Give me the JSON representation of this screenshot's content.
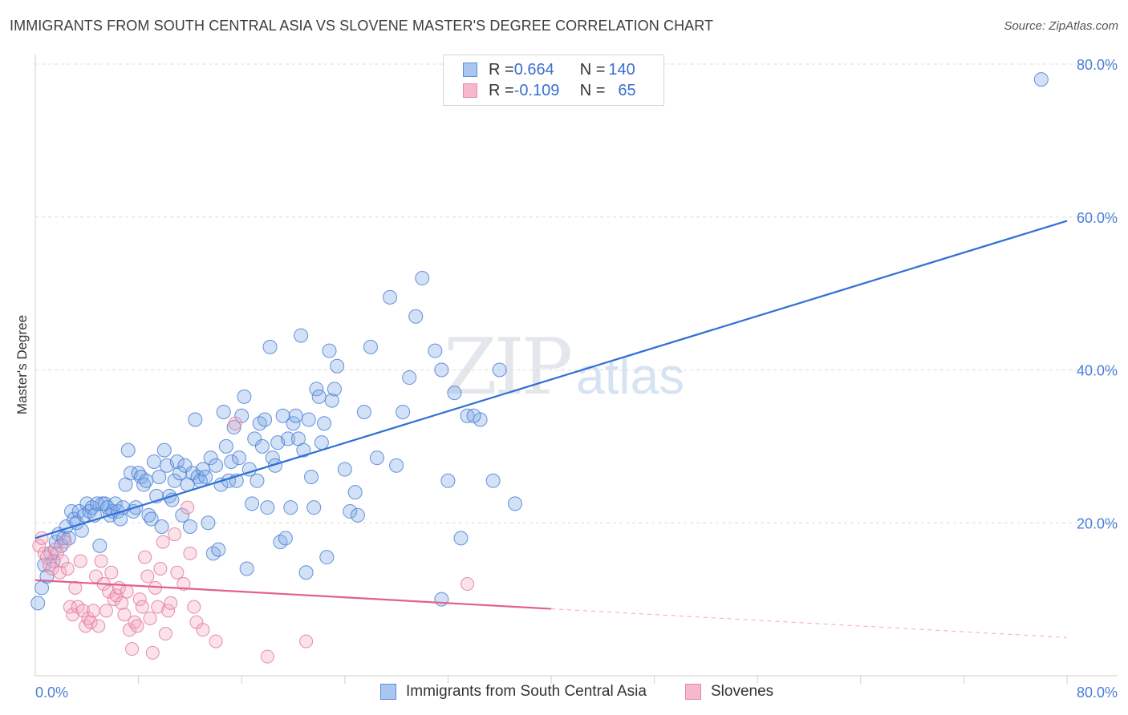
{
  "header": {
    "title": "IMMIGRANTS FROM SOUTH CENTRAL ASIA VS SLOVENE MASTER'S DEGREE CORRELATION CHART",
    "source": "Source: ZipAtlas.com"
  },
  "watermark": {
    "zip": "ZIP",
    "atlas": "atlas"
  },
  "legend_stats": [
    {
      "r_label": "R = ",
      "r_value": "0.664",
      "n_label": "N = ",
      "n_value": "140",
      "color": "#a9c6f0",
      "edge": "#5b8ddb"
    },
    {
      "r_label": "R = ",
      "r_value": "-0.109",
      "n_label": "N = ",
      "n_value": "65",
      "color": "#f6b9cb",
      "edge": "#e88aa8"
    }
  ],
  "bottom_legend": [
    {
      "label": "Immigrants from South Central Asia",
      "color": "#a9c6f0",
      "edge": "#5b8ddb"
    },
    {
      "label": "Slovenes",
      "color": "#f6b9cb",
      "edge": "#e88aa8"
    }
  ],
  "chart_data": {
    "type": "scatter",
    "title": "IMMIGRANTS FROM SOUTH CENTRAL ASIA VS SLOVENE MASTER'S DEGREE CORRELATION CHART",
    "xlabel": "",
    "ylabel": "Master's Degree",
    "xlim": [
      0,
      0.8
    ],
    "ylim": [
      0,
      0.8
    ],
    "x_tick_labels": [
      "0.0%",
      "80.0%"
    ],
    "y_tick_labels": [
      {
        "value": 0.2,
        "label": "20.0%"
      },
      {
        "value": 0.4,
        "label": "40.0%"
      },
      {
        "value": 0.6,
        "label": "60.0%"
      },
      {
        "value": 0.8,
        "label": "80.0%"
      }
    ],
    "grid": true,
    "series": [
      {
        "name": "Immigrants from South Central Asia",
        "color": "#7fa8e6",
        "edge": "#4b80d6",
        "trend": {
          "x0": 0.0,
          "y0": 0.18,
          "x1": 0.8,
          "y1": 0.595,
          "solid_to": 0.8
        },
        "points": [
          [
            0.002,
            0.095
          ],
          [
            0.005,
            0.115
          ],
          [
            0.007,
            0.145
          ],
          [
            0.009,
            0.13
          ],
          [
            0.012,
            0.16
          ],
          [
            0.014,
            0.15
          ],
          [
            0.016,
            0.175
          ],
          [
            0.018,
            0.185
          ],
          [
            0.02,
            0.17
          ],
          [
            0.022,
            0.18
          ],
          [
            0.024,
            0.195
          ],
          [
            0.026,
            0.18
          ],
          [
            0.028,
            0.215
          ],
          [
            0.03,
            0.205
          ],
          [
            0.032,
            0.2
          ],
          [
            0.034,
            0.215
          ],
          [
            0.036,
            0.19
          ],
          [
            0.038,
            0.21
          ],
          [
            0.04,
            0.225
          ],
          [
            0.042,
            0.215
          ],
          [
            0.044,
            0.22
          ],
          [
            0.046,
            0.21
          ],
          [
            0.048,
            0.225
          ],
          [
            0.05,
            0.17
          ],
          [
            0.052,
            0.225
          ],
          [
            0.054,
            0.225
          ],
          [
            0.056,
            0.22
          ],
          [
            0.058,
            0.21
          ],
          [
            0.06,
            0.215
          ],
          [
            0.062,
            0.225
          ],
          [
            0.064,
            0.215
          ],
          [
            0.066,
            0.205
          ],
          [
            0.068,
            0.22
          ],
          [
            0.07,
            0.25
          ],
          [
            0.072,
            0.295
          ],
          [
            0.074,
            0.265
          ],
          [
            0.076,
            0.215
          ],
          [
            0.078,
            0.22
          ],
          [
            0.08,
            0.265
          ],
          [
            0.082,
            0.26
          ],
          [
            0.084,
            0.25
          ],
          [
            0.086,
            0.255
          ],
          [
            0.088,
            0.21
          ],
          [
            0.09,
            0.205
          ],
          [
            0.092,
            0.28
          ],
          [
            0.094,
            0.235
          ],
          [
            0.096,
            0.26
          ],
          [
            0.098,
            0.195
          ],
          [
            0.1,
            0.295
          ],
          [
            0.102,
            0.275
          ],
          [
            0.104,
            0.235
          ],
          [
            0.106,
            0.23
          ],
          [
            0.108,
            0.255
          ],
          [
            0.11,
            0.28
          ],
          [
            0.112,
            0.265
          ],
          [
            0.114,
            0.21
          ],
          [
            0.116,
            0.275
          ],
          [
            0.118,
            0.25
          ],
          [
            0.12,
            0.195
          ],
          [
            0.122,
            0.265
          ],
          [
            0.124,
            0.335
          ],
          [
            0.126,
            0.26
          ],
          [
            0.128,
            0.255
          ],
          [
            0.13,
            0.27
          ],
          [
            0.132,
            0.26
          ],
          [
            0.134,
            0.2
          ],
          [
            0.136,
            0.285
          ],
          [
            0.138,
            0.16
          ],
          [
            0.14,
            0.275
          ],
          [
            0.142,
            0.165
          ],
          [
            0.144,
            0.25
          ],
          [
            0.146,
            0.345
          ],
          [
            0.148,
            0.3
          ],
          [
            0.15,
            0.255
          ],
          [
            0.152,
            0.28
          ],
          [
            0.154,
            0.325
          ],
          [
            0.156,
            0.255
          ],
          [
            0.158,
            0.285
          ],
          [
            0.16,
            0.34
          ],
          [
            0.162,
            0.365
          ],
          [
            0.164,
            0.14
          ],
          [
            0.166,
            0.27
          ],
          [
            0.168,
            0.225
          ],
          [
            0.17,
            0.31
          ],
          [
            0.172,
            0.255
          ],
          [
            0.174,
            0.33
          ],
          [
            0.176,
            0.3
          ],
          [
            0.178,
            0.335
          ],
          [
            0.18,
            0.22
          ],
          [
            0.182,
            0.43
          ],
          [
            0.184,
            0.285
          ],
          [
            0.186,
            0.275
          ],
          [
            0.188,
            0.305
          ],
          [
            0.19,
            0.175
          ],
          [
            0.192,
            0.34
          ],
          [
            0.194,
            0.18
          ],
          [
            0.196,
            0.31
          ],
          [
            0.198,
            0.22
          ],
          [
            0.2,
            0.33
          ],
          [
            0.202,
            0.34
          ],
          [
            0.204,
            0.31
          ],
          [
            0.206,
            0.445
          ],
          [
            0.208,
            0.295
          ],
          [
            0.21,
            0.135
          ],
          [
            0.212,
            0.335
          ],
          [
            0.214,
            0.26
          ],
          [
            0.216,
            0.22
          ],
          [
            0.218,
            0.375
          ],
          [
            0.22,
            0.365
          ],
          [
            0.222,
            0.305
          ],
          [
            0.224,
            0.33
          ],
          [
            0.226,
            0.155
          ],
          [
            0.228,
            0.425
          ],
          [
            0.23,
            0.36
          ],
          [
            0.232,
            0.375
          ],
          [
            0.234,
            0.405
          ],
          [
            0.24,
            0.27
          ],
          [
            0.244,
            0.215
          ],
          [
            0.248,
            0.24
          ],
          [
            0.25,
            0.21
          ],
          [
            0.255,
            0.345
          ],
          [
            0.26,
            0.43
          ],
          [
            0.265,
            0.285
          ],
          [
            0.275,
            0.495
          ],
          [
            0.28,
            0.275
          ],
          [
            0.285,
            0.345
          ],
          [
            0.29,
            0.39
          ],
          [
            0.295,
            0.47
          ],
          [
            0.3,
            0.52
          ],
          [
            0.31,
            0.425
          ],
          [
            0.315,
            0.4
          ],
          [
            0.32,
            0.255
          ],
          [
            0.325,
            0.37
          ],
          [
            0.33,
            0.18
          ],
          [
            0.335,
            0.34
          ],
          [
            0.345,
            0.335
          ],
          [
            0.355,
            0.255
          ],
          [
            0.36,
            0.4
          ],
          [
            0.372,
            0.225
          ],
          [
            0.315,
            0.1
          ],
          [
            0.78,
            0.78
          ],
          [
            0.34,
            0.34
          ]
        ]
      },
      {
        "name": "Slovenes",
        "color": "#f3a9c0",
        "edge": "#e3799c",
        "trend": {
          "x0": 0.0,
          "y0": 0.125,
          "x1": 0.8,
          "y1": 0.05,
          "solid_to": 0.4
        },
        "points": [
          [
            0.003,
            0.17
          ],
          [
            0.005,
            0.18
          ],
          [
            0.007,
            0.16
          ],
          [
            0.009,
            0.155
          ],
          [
            0.011,
            0.145
          ],
          [
            0.013,
            0.14
          ],
          [
            0.015,
            0.165
          ],
          [
            0.017,
            0.16
          ],
          [
            0.019,
            0.135
          ],
          [
            0.021,
            0.15
          ],
          [
            0.023,
            0.175
          ],
          [
            0.025,
            0.14
          ],
          [
            0.027,
            0.09
          ],
          [
            0.029,
            0.08
          ],
          [
            0.031,
            0.115
          ],
          [
            0.033,
            0.09
          ],
          [
            0.035,
            0.15
          ],
          [
            0.037,
            0.085
          ],
          [
            0.039,
            0.065
          ],
          [
            0.041,
            0.075
          ],
          [
            0.043,
            0.07
          ],
          [
            0.045,
            0.085
          ],
          [
            0.047,
            0.13
          ],
          [
            0.049,
            0.065
          ],
          [
            0.051,
            0.15
          ],
          [
            0.053,
            0.12
          ],
          [
            0.055,
            0.085
          ],
          [
            0.057,
            0.11
          ],
          [
            0.059,
            0.135
          ],
          [
            0.061,
            0.1
          ],
          [
            0.063,
            0.105
          ],
          [
            0.065,
            0.115
          ],
          [
            0.067,
            0.095
          ],
          [
            0.069,
            0.08
          ],
          [
            0.071,
            0.11
          ],
          [
            0.073,
            0.06
          ],
          [
            0.075,
            0.035
          ],
          [
            0.077,
            0.07
          ],
          [
            0.079,
            0.065
          ],
          [
            0.081,
            0.1
          ],
          [
            0.083,
            0.09
          ],
          [
            0.085,
            0.155
          ],
          [
            0.087,
            0.13
          ],
          [
            0.089,
            0.075
          ],
          [
            0.091,
            0.03
          ],
          [
            0.093,
            0.115
          ],
          [
            0.095,
            0.09
          ],
          [
            0.097,
            0.14
          ],
          [
            0.099,
            0.175
          ],
          [
            0.101,
            0.055
          ],
          [
            0.103,
            0.085
          ],
          [
            0.105,
            0.095
          ],
          [
            0.108,
            0.185
          ],
          [
            0.11,
            0.135
          ],
          [
            0.115,
            0.12
          ],
          [
            0.118,
            0.22
          ],
          [
            0.12,
            0.16
          ],
          [
            0.123,
            0.09
          ],
          [
            0.125,
            0.07
          ],
          [
            0.13,
            0.06
          ],
          [
            0.14,
            0.045
          ],
          [
            0.155,
            0.33
          ],
          [
            0.18,
            0.025
          ],
          [
            0.21,
            0.045
          ],
          [
            0.335,
            0.12
          ]
        ]
      }
    ]
  }
}
